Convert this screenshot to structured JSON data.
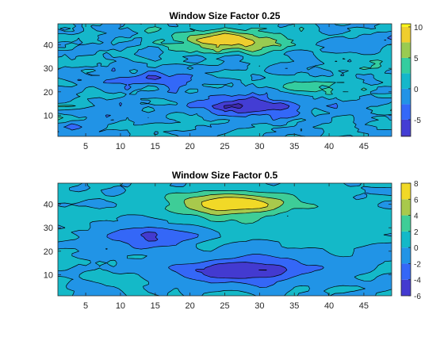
{
  "chart_data": [
    {
      "type": "contour",
      "title": "Window Size Factor 0.25",
      "xlim": [
        1,
        49
      ],
      "ylim": [
        1,
        49
      ],
      "xticks": [
        5,
        10,
        15,
        20,
        25,
        30,
        35,
        40,
        45
      ],
      "yticks": [
        10,
        20,
        30,
        40
      ],
      "colorbar": {
        "min": -7.7,
        "max": 10.5,
        "ticks": [
          10,
          5,
          0,
          -5
        ]
      },
      "colormap": "parula",
      "features": [
        {
          "kind": "peak",
          "x": 25.5,
          "y": 41.5,
          "value": 10,
          "sx": 5.5,
          "sy": 3.2
        },
        {
          "kind": "trough",
          "x": 27.5,
          "y": 14,
          "value": -7,
          "sx": 5.5,
          "sy": 3
        },
        {
          "kind": "trough",
          "x": 14.5,
          "y": 25,
          "value": -5.5,
          "sx": 4,
          "sy": 2.5
        },
        {
          "kind": "peak",
          "x": 38,
          "y": 22.5,
          "value": 3,
          "sx": 3.5,
          "sy": 2.5
        },
        {
          "kind": "peak",
          "x": 47,
          "y": 31,
          "value": 3,
          "sx": 2,
          "sy": 3
        }
      ]
    },
    {
      "type": "contour",
      "title": "Window Size Factor 0.5",
      "xlim": [
        1,
        49
      ],
      "ylim": [
        1,
        49
      ],
      "xticks": [
        5,
        10,
        15,
        20,
        25,
        30,
        35,
        40,
        45
      ],
      "yticks": [
        10,
        20,
        30,
        40
      ],
      "colorbar": {
        "min": -6,
        "max": 8,
        "ticks": [
          8,
          6,
          4,
          2,
          0,
          -2,
          -4,
          -6
        ]
      },
      "colormap": "parula",
      "features": [
        {
          "kind": "peak",
          "x": 26,
          "y": 40,
          "value": 8,
          "sx": 6,
          "sy": 3.8
        },
        {
          "kind": "trough",
          "x": 28,
          "y": 12,
          "value": -6,
          "sx": 7,
          "sy": 3.8
        },
        {
          "kind": "trough",
          "x": 14,
          "y": 26,
          "value": -4,
          "sx": 4.5,
          "sy": 3
        },
        {
          "kind": "peak",
          "x": 40,
          "y": 28,
          "value": 2,
          "sx": 5,
          "sy": 4
        }
      ]
    }
  ]
}
